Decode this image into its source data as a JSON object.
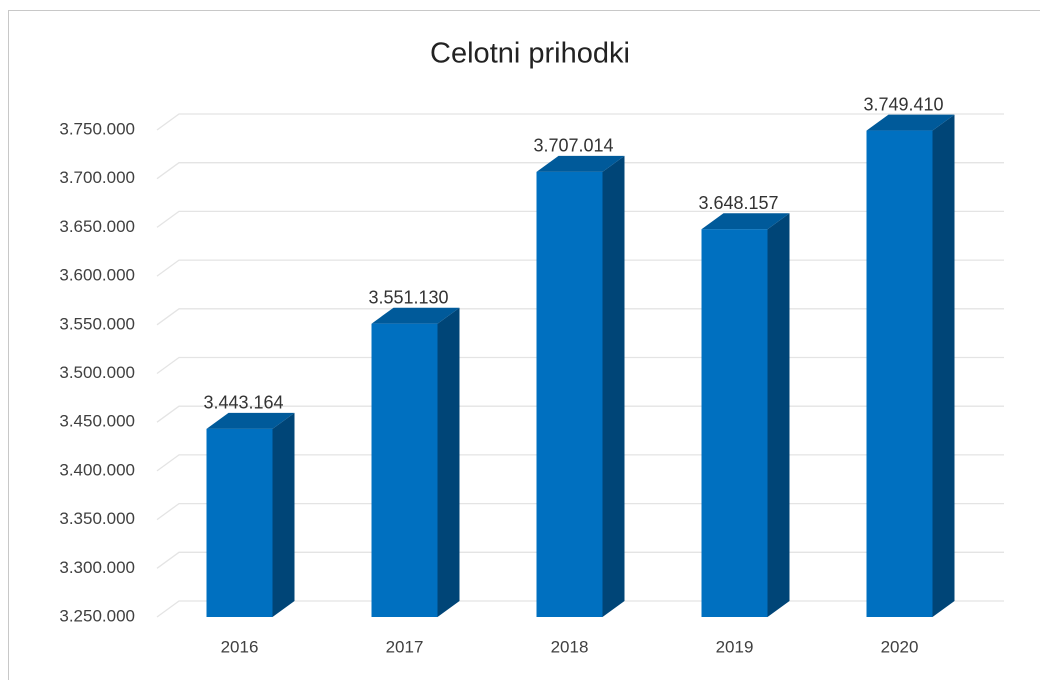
{
  "chart_data": {
    "type": "bar3d",
    "title": "Celotni prihodki",
    "categories": [
      "2016",
      "2017",
      "2018",
      "2019",
      "2020"
    ],
    "values": [
      3443164,
      3551130,
      3707014,
      3648157,
      3749410
    ],
    "value_labels": [
      "3.443.164",
      "3.551.130",
      "3.707.014",
      "3.648.157",
      "3.749.410"
    ],
    "color": "#0070c0",
    "ylim": [
      3250000,
      3750000
    ],
    "yticks": [
      {
        "value": 3250000,
        "label": "3.250.000"
      },
      {
        "value": 3300000,
        "label": "3.300.000"
      },
      {
        "value": 3350000,
        "label": "3.350.000"
      },
      {
        "value": 3400000,
        "label": "3.400.000"
      },
      {
        "value": 3450000,
        "label": "3.450.000"
      },
      {
        "value": 3500000,
        "label": "3.500.000"
      },
      {
        "value": 3550000,
        "label": "3.550.000"
      },
      {
        "value": 3600000,
        "label": "3.600.000"
      },
      {
        "value": 3650000,
        "label": "3.650.000"
      },
      {
        "value": 3700000,
        "label": "3.700.000"
      },
      {
        "value": 3750000,
        "label": "3.750.000"
      }
    ],
    "grid": true
  }
}
